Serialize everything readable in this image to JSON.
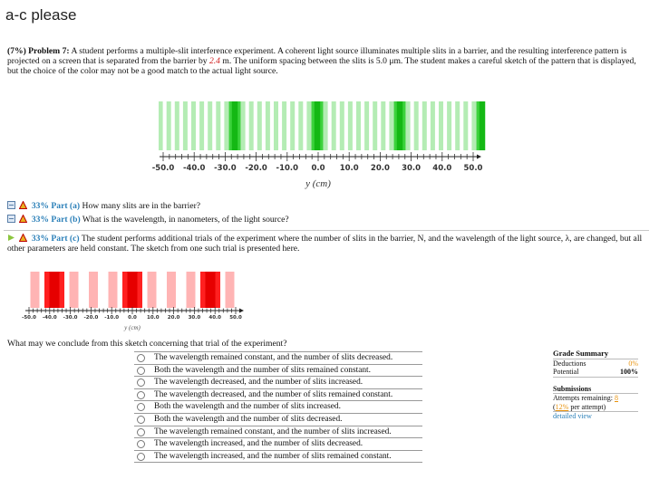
{
  "header": {
    "title": "a-c please"
  },
  "problem": {
    "label": "(7%) Problem 7:",
    "text_before": "A student performs a multiple-slit interference experiment. A coherent light source illuminates multiple slits in a barrier, and the resulting interference pattern is projected on a screen that is separated from the barrier by",
    "distance": "2.4",
    "text_after": "m. The uniform spacing between the slits is 5.0 μm. The student makes a careful sketch of the pattern that is displayed, but the choice of the color may not be a good match to the actual light source."
  },
  "figure1": {
    "tick_labels": [
      "-50.0",
      "-40.0",
      "-30.0",
      "-20.0",
      "-10.0",
      "0.0",
      "10.0",
      "20.0",
      "30.0",
      "40.0",
      "50.0"
    ],
    "axis_label": "y (cm)"
  },
  "parts": [
    {
      "percent": "33%",
      "label": "Part (a)",
      "text": "How many slits are in the barrier?"
    },
    {
      "percent": "33%",
      "label": "Part (b)",
      "text": "What is the wavelength, in nanometers, of the light source?"
    },
    {
      "percent": "33%",
      "label": "Part (c)",
      "text": "The student performs additional trials of the experiment where the number of slits in the barrier, N, and the wavelength of the light source, λ, are changed, but all other parameters are held constant. The sketch from one such trial is presented here."
    }
  ],
  "figure2": {
    "tick_labels": [
      "-50.0",
      "-40.0",
      "-30.0",
      "-20.0",
      "-10.0",
      "0.0",
      "10.0",
      "20.0",
      "30.0",
      "40.0",
      "50.0"
    ],
    "axis_label": "y (cm)"
  },
  "question": "What may we conclude from this sketch concerning that trial of the experiment?",
  "options": [
    "The wavelength remained constant, and the number of slits decreased.",
    "Both the wavelength and the number of slits remained constant.",
    "The wavelength decreased, and the number of slits increased.",
    "The wavelength decreased, and the number of slits remained constant.",
    "Both the wavelength and the number of slits increased.",
    "Both the wavelength and the number of slits decreased.",
    "The wavelength remained constant, and the number of slits increased.",
    "The wavelength increased, and the number of slits decreased.",
    "The wavelength increased, and the number of slits remained constant."
  ],
  "grade_summary": {
    "title": "Grade Summary",
    "deductions_label": "Deductions",
    "deductions": "0%",
    "potential_label": "Potential",
    "potential": "100%",
    "submissions_title": "Submissions",
    "attempts_label": "Attempts remaining:",
    "attempts": "8",
    "per_attempt": "12%",
    "per_attempt_label": "per attempt)",
    "detailed_view": "detailed view"
  }
}
